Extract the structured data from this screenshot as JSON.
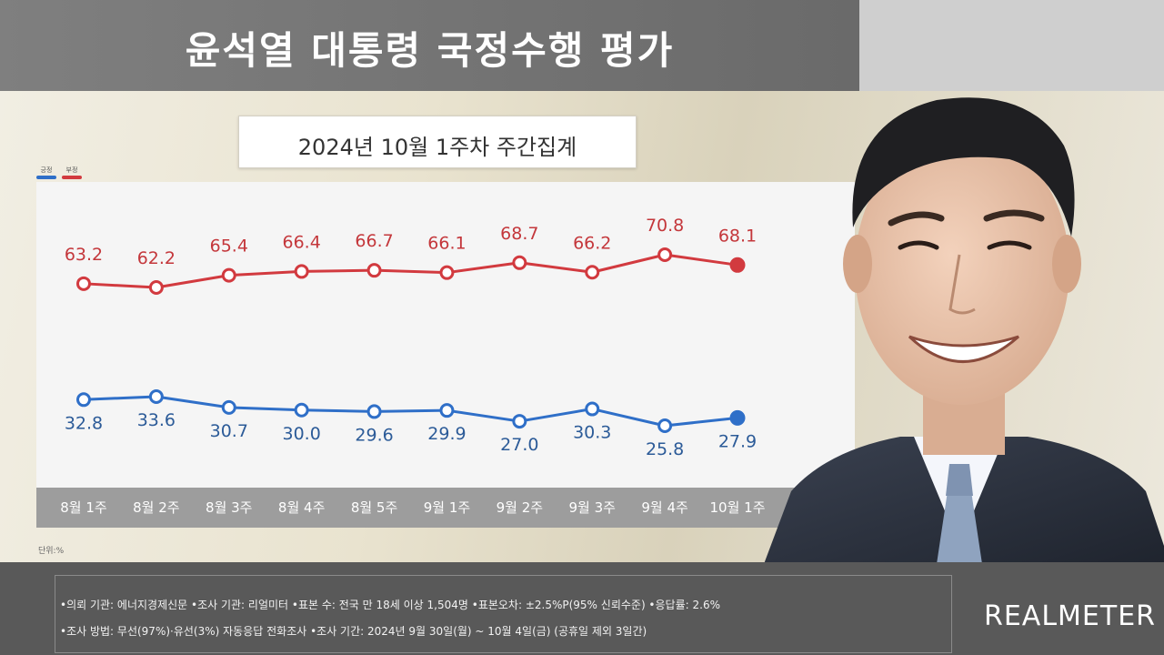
{
  "header": {
    "title": "윤석열 대통령 국정수행 평가",
    "subtitle": "2024년 10월 1주차 주간집계"
  },
  "legend": {
    "positive_label": "긍정",
    "negative_label": "부정"
  },
  "unit_label": "단위:%",
  "colors": {
    "negative": "#d23a3f",
    "positive": "#2f6fc8",
    "label_negative": "#c4373b",
    "label_positive": "#2c5b98"
  },
  "chart_data": {
    "type": "line",
    "categories": [
      "8월 1주",
      "8월 2주",
      "8월 3주",
      "8월 4주",
      "8월 5주",
      "9월 1주",
      "9월 2주",
      "9월 3주",
      "9월 4주",
      "10월 1주"
    ],
    "series": [
      {
        "name": "부정",
        "color": "#d23a3f",
        "values": [
          63.2,
          62.2,
          65.4,
          66.4,
          66.7,
          66.1,
          68.7,
          66.2,
          70.8,
          68.1
        ]
      },
      {
        "name": "긍정",
        "color": "#2f6fc8",
        "values": [
          32.8,
          33.6,
          30.7,
          30.0,
          29.6,
          29.9,
          27.0,
          30.3,
          25.8,
          27.9
        ]
      }
    ],
    "ylabel": "단위:%",
    "grid": false,
    "legend_position": "top-left"
  },
  "footer": {
    "line1": "•의뢰 기관: 에너지경제신문 •조사 기관: 리얼미터 •표본 수: 전국 만 18세 이상 1,504명 •표본오차: ±2.5%P(95% 신뢰수준) •응답률: 2.6%",
    "line2": "•조사 방법: 무선(97%)·유선(3%) 자동응답 전화조사 •조사 기간: 2024년 9월 30일(월) ~ 10월 4일(금) (공휴일 제외 3일간)",
    "brand": "REALMETER"
  }
}
